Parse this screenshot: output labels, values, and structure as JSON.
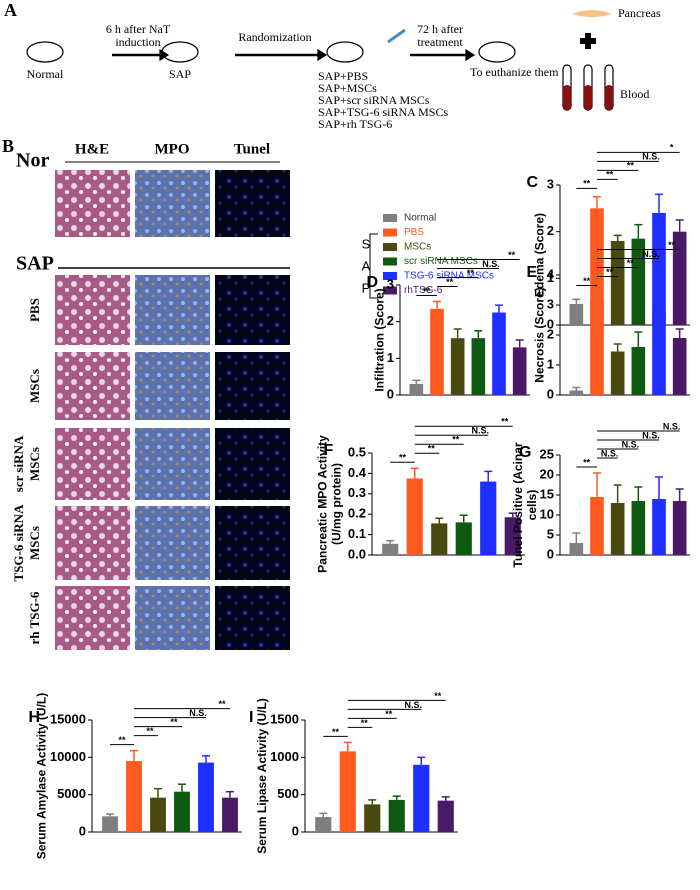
{
  "panel_a": {
    "letter": "A",
    "normal": "Normal",
    "step1": [
      "6 h after NaT",
      "induction"
    ],
    "sap": "SAP",
    "randomization": "Randomization",
    "groups": [
      "SAP+PBS",
      "SAP+MSCs",
      "SAP+scr siRNA MSCs",
      "SAP+TSG-6 siRNA MSCs",
      "SAP+rh TSG-6"
    ],
    "step2": [
      "72 h after",
      "treatment"
    ],
    "euthanize": "To euthanize them",
    "pancreas": "Pancreas",
    "blood": "Blood"
  },
  "panel_b": {
    "letter": "B",
    "nor": "Nor",
    "columns": [
      "H&E",
      "MPO",
      "Tunel"
    ],
    "sap": "SAP",
    "rows": [
      [
        "PBS"
      ],
      [
        "MSCs"
      ],
      [
        "scr siRNA",
        "MSCs"
      ],
      [
        "TSG-6 siRNA",
        "MSCs"
      ],
      [
        "rh TSG-6"
      ]
    ]
  },
  "legend": {
    "items": [
      {
        "name": "Normal",
        "color": "#7f7f7f"
      },
      {
        "name": "PBS",
        "color": "#ff5a1f"
      },
      {
        "name": "MSCs",
        "color": "#4a4a10"
      },
      {
        "name": "scr siRNA MSCs",
        "color": "#0f5a12"
      },
      {
        "name": "TSG-6 siRNA MSCs",
        "color": "#1f2fff"
      },
      {
        "name": "rhTSG-6",
        "color": "#4a1a66"
      }
    ],
    "bracket": [
      "S",
      "A",
      "P"
    ]
  },
  "chart_data": [
    {
      "type": "bar",
      "panel": "C",
      "ylabel": [
        "Edema (Score)"
      ],
      "categories": [
        null,
        null,
        null,
        null,
        null,
        null
      ],
      "values": [
        0.45,
        2.5,
        1.8,
        1.85,
        2.4,
        2.0
      ],
      "errors": [
        0.1,
        0.25,
        0.12,
        0.3,
        0.4,
        0.25
      ],
      "ylim": [
        0,
        3
      ],
      "yticks": [
        0,
        1,
        2,
        3
      ],
      "significance": [
        {
          "from": 0,
          "to": 1,
          "label": "**"
        },
        {
          "from": 1,
          "to": 2,
          "label": "**"
        },
        {
          "from": 1,
          "to": 3,
          "label": "**"
        },
        {
          "from": 1,
          "to": 4,
          "label": "N.S."
        },
        {
          "from": 1,
          "to": 5,
          "label": "*"
        }
      ]
    },
    {
      "type": "bar",
      "panel": "D",
      "ylabel": [
        "Infiltration (Score)"
      ],
      "categories": [
        null,
        null,
        null,
        null,
        null,
        null
      ],
      "values": [
        0.3,
        2.35,
        1.55,
        1.55,
        2.25,
        1.3
      ],
      "errors": [
        0.1,
        0.2,
        0.25,
        0.2,
        0.2,
        0.2
      ],
      "ylim": [
        0,
        3
      ],
      "yticks": [
        0,
        1,
        2,
        3
      ],
      "significance": [
        {
          "from": 0,
          "to": 1,
          "label": "**"
        },
        {
          "from": 1,
          "to": 2,
          "label": "**"
        },
        {
          "from": 1,
          "to": 3,
          "label": "**"
        },
        {
          "from": 1,
          "to": 4,
          "label": "N.S."
        },
        {
          "from": 1,
          "to": 5,
          "label": "**"
        }
      ]
    },
    {
      "type": "bar",
      "panel": "E",
      "ylabel": [
        "Necrosis (Score)"
      ],
      "categories": [
        null,
        null,
        null,
        null,
        null,
        null
      ],
      "values": [
        0.15,
        3.15,
        1.45,
        1.6,
        2.8,
        1.9
      ],
      "errors": [
        0.1,
        0.3,
        0.25,
        0.5,
        0.4,
        0.3
      ],
      "ylim": [
        0,
        4
      ],
      "yticks": [
        0,
        1,
        2,
        3,
        4
      ],
      "significance": [
        {
          "from": 0,
          "to": 1,
          "label": "**"
        },
        {
          "from": 1,
          "to": 2,
          "label": "**"
        },
        {
          "from": 1,
          "to": 3,
          "label": "**"
        },
        {
          "from": 1,
          "to": 4,
          "label": "N.S."
        },
        {
          "from": 1,
          "to": 5,
          "label": "**"
        }
      ]
    },
    {
      "type": "bar",
      "panel": "F",
      "ylabel": [
        "Pancreatic MPO Activity",
        "(U/mg protein)"
      ],
      "categories": [
        null,
        null,
        null,
        null,
        null,
        null
      ],
      "values": [
        0.055,
        0.375,
        0.155,
        0.16,
        0.36,
        0.185
      ],
      "errors": [
        0.015,
        0.05,
        0.025,
        0.035,
        0.05,
        0.02
      ],
      "ylim": [
        0,
        0.5
      ],
      "yticks": [
        {
          "value": 0,
          "label": "0.0"
        },
        0.1,
        0.2,
        0.3,
        0.4,
        0.5
      ],
      "significance": [
        {
          "from": 0,
          "to": 1,
          "label": "**"
        },
        {
          "from": 1,
          "to": 2,
          "label": "**"
        },
        {
          "from": 1,
          "to": 3,
          "label": "**"
        },
        {
          "from": 1,
          "to": 4,
          "label": "N.S."
        },
        {
          "from": 1,
          "to": 5,
          "label": "**"
        }
      ]
    },
    {
      "type": "bar",
      "panel": "G",
      "ylabel": [
        "Tunel Positive (Acinar",
        "cells)"
      ],
      "categories": [
        null,
        null,
        null,
        null,
        null,
        null
      ],
      "values": [
        3,
        14.5,
        13,
        13.5,
        14,
        13.5
      ],
      "errors": [
        2.5,
        6,
        4.5,
        3.5,
        5.5,
        3
      ],
      "ylim": [
        0,
        25
      ],
      "yticks": [
        0,
        5,
        10,
        15,
        20,
        25
      ],
      "significance": [
        {
          "from": 0,
          "to": 1,
          "label": "**"
        },
        {
          "from": 1,
          "to": 2,
          "label": "N.S."
        },
        {
          "from": 1,
          "to": 3,
          "label": "N.S."
        },
        {
          "from": 1,
          "to": 4,
          "label": "N.S."
        },
        {
          "from": 1,
          "to": 5,
          "label": "N.S."
        }
      ]
    },
    {
      "type": "bar",
      "panel": "H",
      "ylabel": [
        "Serum Amylase Activity (U/L)"
      ],
      "categories": [
        null,
        null,
        null,
        null,
        null,
        null
      ],
      "values": [
        2100,
        9500,
        4600,
        5400,
        9300,
        4600
      ],
      "errors": [
        300,
        1400,
        1200,
        1000,
        900,
        800
      ],
      "ylim": [
        0,
        15000
      ],
      "yticks": [
        0,
        5000,
        10000,
        15000
      ],
      "significance": [
        {
          "from": 0,
          "to": 1,
          "label": "**"
        },
        {
          "from": 1,
          "to": 2,
          "label": "**"
        },
        {
          "from": 1,
          "to": 3,
          "label": "**"
        },
        {
          "from": 1,
          "to": 4,
          "label": "N.S."
        },
        {
          "from": 1,
          "to": 5,
          "label": "**"
        }
      ]
    },
    {
      "type": "bar",
      "panel": "I",
      "ylabel": [
        "Serum Lipase Activity (U/L)"
      ],
      "categories": [
        null,
        null,
        null,
        null,
        null,
        null
      ],
      "values": [
        200,
        1080,
        370,
        430,
        900,
        420
      ],
      "errors": [
        50,
        120,
        60,
        50,
        100,
        50
      ],
      "ylim": [
        0,
        1500
      ],
      "yticks": [
        0,
        500,
        1000,
        1500
      ],
      "significance": [
        {
          "from": 0,
          "to": 1,
          "label": "**"
        },
        {
          "from": 1,
          "to": 2,
          "label": "**"
        },
        {
          "from": 1,
          "to": 3,
          "label": "**"
        },
        {
          "from": 1,
          "to": 4,
          "label": "N.S."
        },
        {
          "from": 1,
          "to": 5,
          "label": "**"
        }
      ]
    }
  ]
}
